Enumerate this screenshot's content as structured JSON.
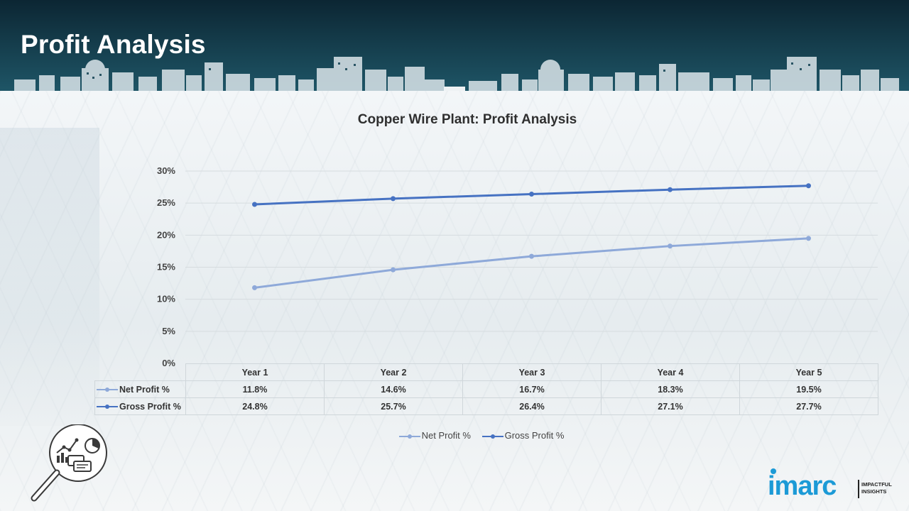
{
  "page": {
    "title": "Profit Analysis"
  },
  "chart_data": {
    "type": "line",
    "title": "Copper Wire Plant: Profit Analysis",
    "categories": [
      "Year 1",
      "Year 2",
      "Year 3",
      "Year 4",
      "Year 5"
    ],
    "series": [
      {
        "name": "Net Profit %",
        "color": "#8ea9d9",
        "values": [
          11.8,
          14.6,
          16.7,
          18.3,
          19.5
        ],
        "labels": [
          "11.8%",
          "14.6%",
          "16.7%",
          "18.3%",
          "19.5%"
        ]
      },
      {
        "name": "Gross Profit %",
        "color": "#4672c2",
        "values": [
          24.8,
          25.7,
          26.4,
          27.1,
          27.7
        ],
        "labels": [
          "24.8%",
          "25.7%",
          "26.4%",
          "27.1%",
          "27.7%"
        ]
      }
    ],
    "ylim": [
      0,
      30
    ],
    "yticks": [
      "0%",
      "5%",
      "10%",
      "15%",
      "20%",
      "25%",
      "30%"
    ],
    "ytick_values": [
      0,
      5,
      10,
      15,
      20,
      25,
      30
    ],
    "grid": true,
    "legend": "bottom",
    "data_table": true
  },
  "brand": {
    "logo_text": "imarc",
    "tagline_1": "IMPACTFUL",
    "tagline_2": "INSIGHTS",
    "color": "#1c9ad6"
  },
  "icons": {
    "analysis": "magnifier-analytics-icon"
  }
}
